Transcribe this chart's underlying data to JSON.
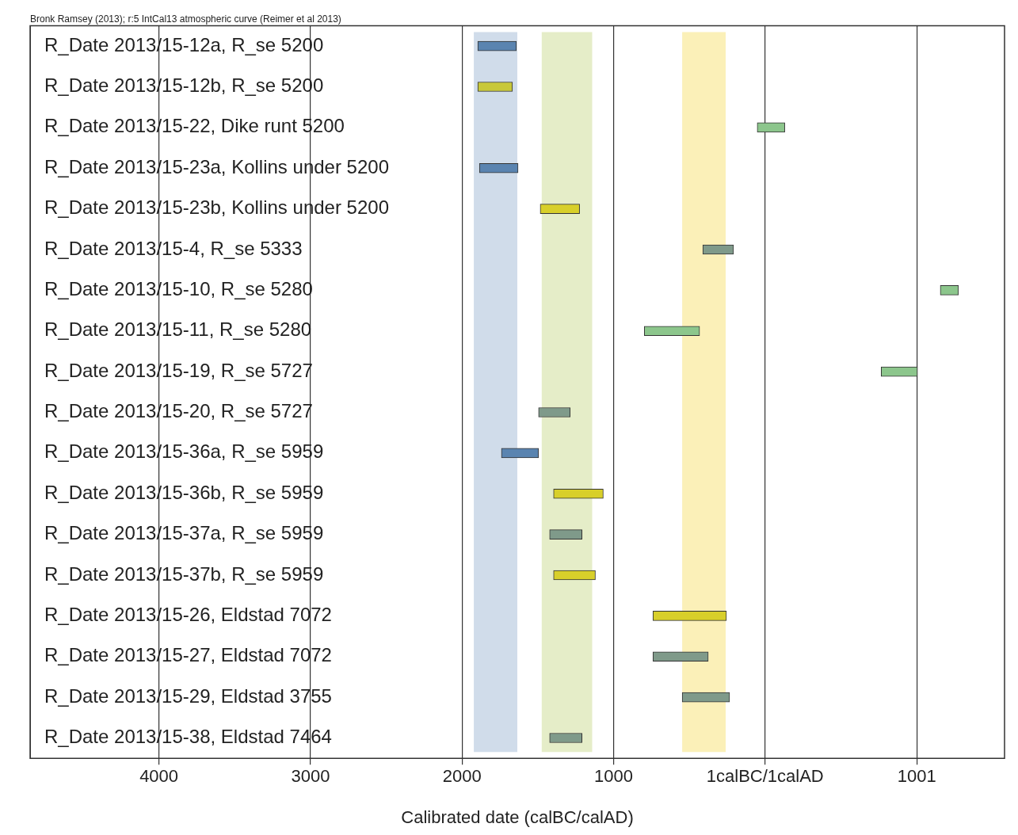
{
  "chart_data": {
    "type": "bar",
    "orientation": "horizontal",
    "annotations": [
      "Bronk Ramsey (2013); r:5 IntCal13 atmospheric curve (Reimer et al 2013)"
    ],
    "xlabel": "Calibrated date (calBC/calAD)",
    "categories": [
      "R_Date 2013/15-12a, R_se 5200",
      "R_Date 2013/15-12b, R_se 5200",
      "R_Date 2013/15-22, Dike runt 5200",
      "R_Date 2013/15-23a, Kollins under 5200",
      "R_Date 2013/15-23b, Kollins under 5200",
      "R_Date 2013/15-4, R_se 5333",
      "R_Date 2013/15-10, R_se 5280",
      "R_Date 2013/15-11, R_se 5280",
      "R_Date 2013/15-19, R_se 5727",
      "R_Date 2013/15-20, R_se 5727",
      "R_Date 2013/15-36a, R_se 5959",
      "R_Date 2013/15-36b, R_se 5959",
      "R_Date 2013/15-37a, R_se 5959",
      "R_Date 2013/15-37b, R_se 5959",
      "R_Date 2013/15-26, Eldstad 7072",
      "R_Date 2013/15-27, Eldstad 7072",
      "R_Date 2013/15-29, Eldstad 3755",
      "R_Date 2013/15-38, Eldstad 7464"
    ],
    "base": [
      -1896,
      -1896,
      -52,
      -1885,
      -1484,
      -411,
      1156,
      -797,
      766,
      -1495,
      -1740,
      -1396,
      -1422,
      -1396,
      -740,
      -740,
      -547,
      -1422
    ],
    "values": [
      255,
      229,
      182,
      255,
      260,
      203,
      120,
      365,
      239,
      209,
      245,
      328,
      214,
      276,
      485,
      365,
      313,
      214
    ],
    "colors": [
      "#5a84b0",
      "#c8c83a",
      "#8cc68c",
      "#5a84b0",
      "#d8cf2a",
      "#7f9a8a",
      "#8cc68c",
      "#8cc68c",
      "#8cc68c",
      "#7f9a8a",
      "#5a84b0",
      "#d8cf2a",
      "#7f9a8a",
      "#d8cf2a",
      "#d8cf2a",
      "#7f9a8a",
      "#7f9a8a",
      "#7f9a8a"
    ],
    "xlim": [
      -4850,
      1580
    ],
    "xticks": [
      {
        "value": -4000,
        "label": "4000"
      },
      {
        "value": -3000,
        "label": "3000"
      },
      {
        "value": -2000,
        "label": "2000"
      },
      {
        "value": -1000,
        "label": "1000"
      },
      {
        "value": 0,
        "label": "1calBC/1calAD"
      },
      1001
    ],
    "bands": [
      {
        "axis": "x",
        "from": -1922,
        "to": -1635,
        "color": "#d0dcea"
      },
      {
        "axis": "x",
        "from": -1474,
        "to": -1141,
        "color": "#e5edc8"
      },
      {
        "axis": "x",
        "from": -547,
        "to": -260,
        "color": "#fbf0b8"
      }
    ],
    "grid": "x",
    "legend": false
  }
}
